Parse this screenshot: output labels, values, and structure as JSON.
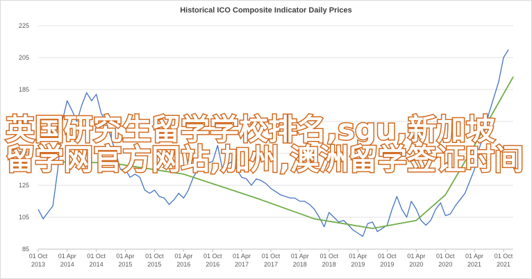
{
  "chart_data": {
    "type": "line",
    "title": "Historical ICO Composite Indicator Daily Prices",
    "x": [
      "2013-10-01",
      "2013-11-01",
      "2013-12-01",
      "2014-01-01",
      "2014-02-01",
      "2014-03-01",
      "2014-04-01",
      "2014-05-01",
      "2014-06-01",
      "2014-07-01",
      "2014-08-01",
      "2014-09-01",
      "2014-10-01",
      "2014-11-01",
      "2014-12-01",
      "2015-01-01",
      "2015-02-01",
      "2015-03-01",
      "2015-04-01",
      "2015-05-01",
      "2015-06-01",
      "2015-07-01",
      "2015-08-01",
      "2015-09-01",
      "2015-10-01",
      "2015-11-01",
      "2015-12-01",
      "2016-01-01",
      "2016-02-01",
      "2016-03-01",
      "2016-04-01",
      "2016-05-01",
      "2016-06-01",
      "2016-07-01",
      "2016-08-01",
      "2016-09-01",
      "2016-10-01",
      "2016-11-01",
      "2016-12-01",
      "2017-01-01",
      "2017-02-01",
      "2017-03-01",
      "2017-04-01",
      "2017-05-01",
      "2017-06-01",
      "2017-07-01",
      "2017-08-01",
      "2017-09-01",
      "2017-10-01",
      "2017-11-01",
      "2017-12-01",
      "2018-01-01",
      "2018-02-01",
      "2018-03-01",
      "2018-04-01",
      "2018-05-01",
      "2018-06-01",
      "2018-07-01",
      "2018-08-01",
      "2018-09-01",
      "2018-10-01",
      "2018-11-01",
      "2018-12-01",
      "2019-01-01",
      "2019-02-01",
      "2019-03-01",
      "2019-04-01",
      "2019-05-01",
      "2019-06-01",
      "2019-07-01",
      "2019-08-01",
      "2019-09-01",
      "2019-10-01",
      "2019-11-01",
      "2019-12-01",
      "2020-01-01",
      "2020-02-01",
      "2020-03-01",
      "2020-04-01",
      "2020-05-01",
      "2020-06-01",
      "2020-07-01",
      "2020-08-01",
      "2020-09-01",
      "2020-10-01",
      "2020-11-01",
      "2020-12-01",
      "2021-01-01",
      "2021-02-01",
      "2021-03-01",
      "2021-04-01",
      "2021-05-01",
      "2021-06-01",
      "2021-07-01",
      "2021-08-01",
      "2021-09-01",
      "2021-10-01",
      "2021-11-01"
    ],
    "series": [
      {
        "color": "#4472c4",
        "values": [
          110,
          104,
          108,
          112,
          135,
          165,
          178,
          172,
          165,
          175,
          183,
          178,
          182,
          170,
          165,
          155,
          145,
          135,
          135,
          130,
          132,
          130,
          122,
          120,
          122,
          118,
          117,
          113,
          116,
          120,
          117,
          122,
          130,
          135,
          136,
          139,
          140,
          150,
          135,
          138,
          140,
          135,
          130,
          129,
          125,
          129,
          128,
          126,
          123,
          121,
          119,
          118,
          117,
          117,
          115,
          115,
          113,
          110,
          105,
          99,
          108,
          105,
          102,
          103,
          100,
          97,
          95,
          93,
          101,
          102,
          96,
          98,
          100,
          110,
          118,
          110,
          105,
          115,
          110,
          103,
          100,
          103,
          110,
          114,
          106,
          107,
          112,
          116,
          120,
          127,
          135,
          148,
          157,
          170,
          180,
          190,
          205,
          210
        ]
      },
      {
        "color": "#70ad47",
        "x": [
          "2013-10-01",
          "2015-01-01",
          "2016-04-01",
          "2017-07-01",
          "2018-07-01",
          "2019-07-01",
          "2020-04-01",
          "2020-10-01",
          "2021-04-01",
          "2021-12-01"
        ],
        "values": [
          140,
          139,
          132,
          117,
          104,
          98,
          103,
          119,
          150,
          193
        ]
      }
    ],
    "xlim": [
      "2013-10-01",
      "2021-12-01"
    ],
    "xticks": [
      {
        "value": "2013-10-01",
        "label": "01 Oct 2013"
      },
      {
        "value": "2014-04-01",
        "label": "01 Apr 2014"
      },
      {
        "value": "2014-10-01",
        "label": "01 Oct 2014"
      },
      {
        "value": "2015-04-01",
        "label": "01 Apr 2015"
      },
      {
        "value": "2015-10-01",
        "label": "01 Oct 2015"
      },
      {
        "value": "2016-04-01",
        "label": "01 Apr 2016"
      },
      {
        "value": "2016-10-01",
        "label": "01 Oct 2016"
      },
      {
        "value": "2017-04-01",
        "label": "01 Apr 2017"
      },
      {
        "value": "2017-10-01",
        "label": "01 Oct 2017"
      },
      {
        "value": "2018-04-01",
        "label": "01 Apr 2018"
      },
      {
        "value": "2018-10-01",
        "label": "01 Oct 2018"
      },
      {
        "value": "2019-04-01",
        "label": "01 Apr 2019"
      },
      {
        "value": "2019-10-01",
        "label": "01 Oct 2019"
      },
      {
        "value": "2020-04-01",
        "label": "01 Apr 2020"
      },
      {
        "value": "2020-10-01",
        "label": "01 Oct 2020"
      },
      {
        "value": "2021-04-01",
        "label": "01 Apr 2021"
      },
      {
        "value": "2021-10-01",
        "label": "01 Oct 2021"
      }
    ],
    "ylim": [
      85,
      225
    ],
    "yticks": [
      85,
      105,
      125,
      145,
      165,
      185,
      205,
      225
    ],
    "grid": true
  },
  "overlay_text": [
    "英国研究生留学学校排名,sgu,新加坡",
    "留学网官方网站,加州,澳洲留学签证时间"
  ]
}
